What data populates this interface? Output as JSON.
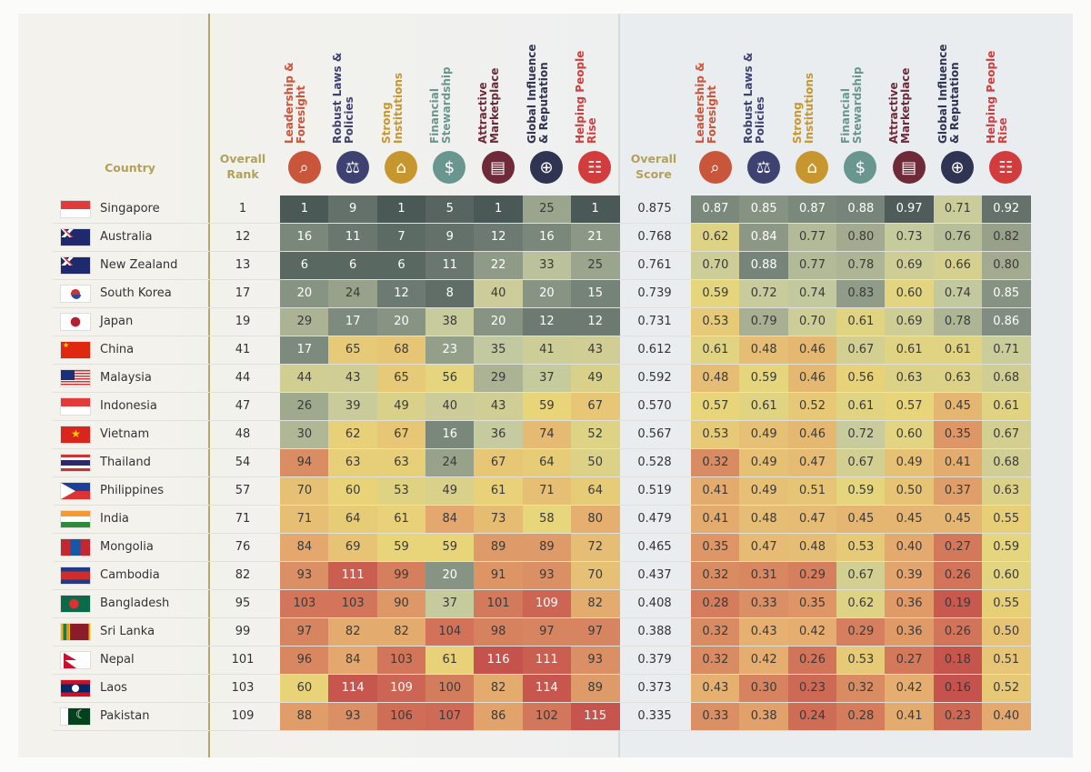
{
  "chart_data": {
    "type": "heatmap",
    "header": {
      "country": "Country",
      "overall_rank": "Overall Rank",
      "overall_score": "Overall Score"
    },
    "categories": [
      {
        "label": "Leadership & Foresight",
        "color": "#c9553a",
        "icon": "binoculars-icon"
      },
      {
        "label": "Robust Laws & Policies",
        "color": "#3e4270",
        "icon": "scales-icon"
      },
      {
        "label": "Strong Institutions",
        "color": "#c8962e",
        "icon": "building-columns-icon"
      },
      {
        "label": "Financial Stewardship",
        "color": "#6a9690",
        "icon": "dollar-magnifier-icon"
      },
      {
        "label": "Attractive Marketplace",
        "color": "#6e2a38",
        "icon": "storefront-icon"
      },
      {
        "label": "Global Influence & Reputation",
        "color": "#2f3452",
        "icon": "globe-icon"
      },
      {
        "label": "Helping People Rise",
        "color": "#d23c3c",
        "icon": "ladder-icon"
      }
    ],
    "color_scale": {
      "best": "#4a5856",
      "mid": "#e8d47a",
      "worst": "#c5524c"
    },
    "rows": [
      {
        "country": "Singapore",
        "flag": "sg",
        "rank": 1,
        "ranks": [
          1,
          9,
          1,
          5,
          1,
          25,
          1
        ],
        "score": "0.875",
        "scores": [
          "0.87",
          "0.85",
          "0.87",
          "0.88",
          "0.97",
          "0.71",
          "0.92"
        ]
      },
      {
        "country": "Australia",
        "flag": "au",
        "rank": 12,
        "ranks": [
          16,
          11,
          7,
          9,
          12,
          16,
          21
        ],
        "score": "0.768",
        "scores": [
          "0.62",
          "0.84",
          "0.77",
          "0.80",
          "0.73",
          "0.76",
          "0.82"
        ]
      },
      {
        "country": "New Zealand",
        "flag": "nz",
        "rank": 13,
        "ranks": [
          6,
          6,
          6,
          11,
          22,
          33,
          25
        ],
        "score": "0.761",
        "scores": [
          "0.70",
          "0.88",
          "0.77",
          "0.78",
          "0.69",
          "0.66",
          "0.80"
        ]
      },
      {
        "country": "South Korea",
        "flag": "kr",
        "rank": 17,
        "ranks": [
          20,
          24,
          12,
          8,
          40,
          20,
          15
        ],
        "score": "0.739",
        "scores": [
          "0.59",
          "0.72",
          "0.74",
          "0.83",
          "0.60",
          "0.74",
          "0.85"
        ]
      },
      {
        "country": "Japan",
        "flag": "jp",
        "rank": 19,
        "ranks": [
          29,
          17,
          20,
          38,
          20,
          12,
          12
        ],
        "score": "0.731",
        "scores": [
          "0.53",
          "0.79",
          "0.70",
          "0.61",
          "0.69",
          "0.78",
          "0.86"
        ]
      },
      {
        "country": "China",
        "flag": "cn",
        "rank": 41,
        "ranks": [
          17,
          65,
          68,
          23,
          35,
          41,
          43
        ],
        "score": "0.612",
        "scores": [
          "0.61",
          "0.48",
          "0.46",
          "0.67",
          "0.61",
          "0.61",
          "0.71"
        ]
      },
      {
        "country": "Malaysia",
        "flag": "my",
        "rank": 44,
        "ranks": [
          44,
          43,
          65,
          56,
          29,
          37,
          49
        ],
        "score": "0.592",
        "scores": [
          "0.48",
          "0.59",
          "0.46",
          "0.56",
          "0.63",
          "0.63",
          "0.68"
        ]
      },
      {
        "country": "Indonesia",
        "flag": "id",
        "rank": 47,
        "ranks": [
          26,
          39,
          49,
          40,
          43,
          59,
          67
        ],
        "score": "0.570",
        "scores": [
          "0.57",
          "0.61",
          "0.52",
          "0.61",
          "0.57",
          "0.45",
          "0.61"
        ]
      },
      {
        "country": "Vietnam",
        "flag": "vn",
        "rank": 48,
        "ranks": [
          30,
          62,
          67,
          16,
          36,
          74,
          52
        ],
        "score": "0.567",
        "scores": [
          "0.53",
          "0.49",
          "0.46",
          "0.72",
          "0.60",
          "0.35",
          "0.67"
        ]
      },
      {
        "country": "Thailand",
        "flag": "th",
        "rank": 54,
        "ranks": [
          94,
          63,
          63,
          24,
          67,
          64,
          50
        ],
        "score": "0.528",
        "scores": [
          "0.32",
          "0.49",
          "0.47",
          "0.67",
          "0.49",
          "0.41",
          "0.68"
        ]
      },
      {
        "country": "Philippines",
        "flag": "ph",
        "rank": 57,
        "ranks": [
          70,
          60,
          53,
          49,
          61,
          71,
          64
        ],
        "score": "0.519",
        "scores": [
          "0.41",
          "0.49",
          "0.51",
          "0.59",
          "0.50",
          "0.37",
          "0.63"
        ]
      },
      {
        "country": "India",
        "flag": "in",
        "rank": 71,
        "ranks": [
          71,
          64,
          61,
          84,
          73,
          58,
          80
        ],
        "score": "0.479",
        "scores": [
          "0.41",
          "0.48",
          "0.47",
          "0.45",
          "0.45",
          "0.45",
          "0.55"
        ]
      },
      {
        "country": "Mongolia",
        "flag": "mn",
        "rank": 76,
        "ranks": [
          84,
          69,
          59,
          59,
          89,
          89,
          72
        ],
        "score": "0.465",
        "scores": [
          "0.35",
          "0.47",
          "0.48",
          "0.53",
          "0.40",
          "0.27",
          "0.59"
        ]
      },
      {
        "country": "Cambodia",
        "flag": "kh",
        "rank": 82,
        "ranks": [
          93,
          111,
          99,
          20,
          91,
          93,
          70
        ],
        "score": "0.437",
        "scores": [
          "0.32",
          "0.31",
          "0.29",
          "0.67",
          "0.39",
          "0.26",
          "0.60"
        ]
      },
      {
        "country": "Bangladesh",
        "flag": "bd",
        "rank": 95,
        "ranks": [
          103,
          103,
          90,
          37,
          101,
          109,
          82
        ],
        "score": "0.408",
        "scores": [
          "0.28",
          "0.33",
          "0.35",
          "0.62",
          "0.36",
          "0.19",
          "0.55"
        ]
      },
      {
        "country": "Sri Lanka",
        "flag": "lk",
        "rank": 99,
        "ranks": [
          97,
          82,
          82,
          104,
          98,
          97,
          97
        ],
        "score": "0.388",
        "scores": [
          "0.32",
          "0.43",
          "0.42",
          "0.29",
          "0.36",
          "0.26",
          "0.50"
        ]
      },
      {
        "country": "Nepal",
        "flag": "np",
        "rank": 101,
        "ranks": [
          96,
          84,
          103,
          61,
          116,
          111,
          93
        ],
        "score": "0.379",
        "scores": [
          "0.32",
          "0.42",
          "0.26",
          "0.53",
          "0.27",
          "0.18",
          "0.51"
        ]
      },
      {
        "country": "Laos",
        "flag": "la",
        "rank": 103,
        "ranks": [
          60,
          114,
          109,
          100,
          82,
          114,
          89
        ],
        "score": "0.373",
        "scores": [
          "0.43",
          "0.30",
          "0.23",
          "0.32",
          "0.42",
          "0.16",
          "0.52"
        ]
      },
      {
        "country": "Pakistan",
        "flag": "pk",
        "rank": 109,
        "ranks": [
          88,
          93,
          106,
          107,
          86,
          102,
          115
        ],
        "score": "0.335",
        "scores": [
          "0.33",
          "0.38",
          "0.24",
          "0.28",
          "0.41",
          "0.23",
          "0.40"
        ]
      }
    ]
  }
}
